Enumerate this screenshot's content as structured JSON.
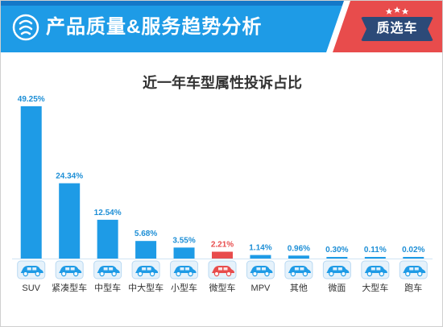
{
  "header": {
    "title": "产品质量&服务趋势分析",
    "badge": "质选车",
    "colors": {
      "banner": "#1e9be6",
      "badge": "#e84c4c",
      "accent_bar": "#1e9be6",
      "highlight_bar": "#e84c4c",
      "value_label": "#1e8fd6"
    }
  },
  "chart_data": {
    "type": "bar",
    "title": "近一年车型属性投诉占比",
    "categories": [
      "SUV",
      "紧凑型车",
      "中型车",
      "中大型车",
      "小型车",
      "微型车",
      "MPV",
      "其他",
      "微面",
      "大型车",
      "跑车"
    ],
    "values": [
      49.25,
      24.34,
      12.54,
      5.68,
      3.55,
      2.21,
      1.14,
      0.96,
      0.3,
      0.11,
      0.02
    ],
    "labels": [
      "49.25%",
      "24.34%",
      "12.54%",
      "5.68%",
      "3.55%",
      "2.21%",
      "1.14%",
      "0.96%",
      "0.30%",
      "0.11%",
      "0.02%"
    ],
    "highlight": "微型车",
    "xlabel": "",
    "ylabel": "",
    "ylim": [
      0,
      50
    ],
    "grid": false,
    "legend": "none"
  }
}
